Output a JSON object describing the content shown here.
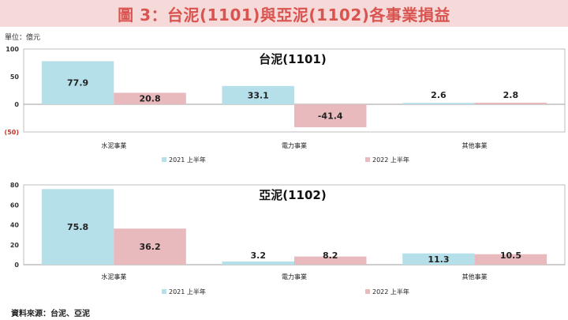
{
  "header": {
    "title": "圖 3：台泥(1101)與亞泥(1102)各事業損益"
  },
  "unit_label": "單位：億元",
  "source_label": "資料來源：台泥、亞泥",
  "colors": {
    "series_2021": "#b5dfe9",
    "series_2022": "#e8b9bd",
    "banner_bg": "#f6dada",
    "banner_text": "#d9534f",
    "negative_tick": "#c0392b"
  },
  "chart_data": [
    {
      "type": "bar",
      "title": "台泥(1101)",
      "categories": [
        "水泥事業",
        "電力事業",
        "其他事業"
      ],
      "series": [
        {
          "name": "2021 上半年",
          "values": [
            77.9,
            33.1,
            2.6
          ]
        },
        {
          "name": "2022 上半年",
          "values": [
            20.8,
            -41.4,
            2.8
          ]
        }
      ],
      "yticks": [
        100,
        50,
        0,
        -50
      ],
      "ytick_labels": [
        "100",
        "50",
        "0",
        "(50)"
      ],
      "ylim": [
        -50,
        100
      ],
      "legend": "bottom",
      "grid": false
    },
    {
      "type": "bar",
      "title": "亞泥(1102)",
      "categories": [
        "水泥事業",
        "電力事業",
        "其他事業"
      ],
      "series": [
        {
          "name": "2021 上半年",
          "values": [
            75.8,
            3.2,
            11.3
          ]
        },
        {
          "name": "2022 上半年",
          "values": [
            36.2,
            8.2,
            10.5
          ]
        }
      ],
      "yticks": [
        80,
        60,
        40,
        20,
        0
      ],
      "ytick_labels": [
        "80",
        "60",
        "40",
        "20",
        "0"
      ],
      "ylim": [
        0,
        80
      ],
      "legend": "bottom",
      "grid": false
    }
  ]
}
